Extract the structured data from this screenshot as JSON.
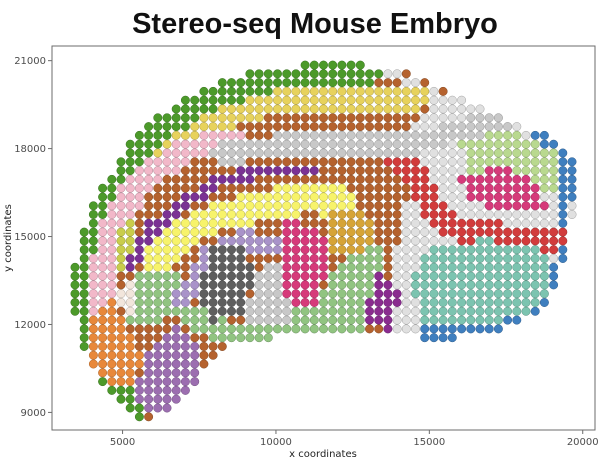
{
  "chart_data": {
    "type": "scatter",
    "title": "Stereo-seq Mouse Embryo",
    "xlabel": "x coordinates",
    "ylabel": "y coordinates",
    "xlim": [
      2700,
      20400
    ],
    "ylim": [
      8400,
      21500
    ],
    "x_ticks": [
      5000,
      10000,
      15000,
      20000
    ],
    "y_ticks": [
      9000,
      12000,
      15000,
      18000,
      21000
    ],
    "x_tick_labels": [
      "5000",
      "10000",
      "15000",
      "20000"
    ],
    "y_tick_labels": [
      "9000",
      "12000",
      "15000",
      "18000",
      "21000"
    ],
    "grid": false,
    "legend": "none",
    "spot_spacing": 300,
    "tissue_outline": [
      [
        3300,
        13200
      ],
      [
        3500,
        14500
      ],
      [
        3900,
        15800
      ],
      [
        4500,
        17000
      ],
      [
        5200,
        18100
      ],
      [
        6300,
        19200
      ],
      [
        7700,
        20100
      ],
      [
        9200,
        20600
      ],
      [
        11000,
        20900
      ],
      [
        12800,
        20900
      ],
      [
        14500,
        20500
      ],
      [
        16000,
        19700
      ],
      [
        17500,
        19000
      ],
      [
        19000,
        18400
      ],
      [
        19700,
        17600
      ],
      [
        19800,
        16000
      ],
      [
        19400,
        14700
      ],
      [
        19300,
        13600
      ],
      [
        18600,
        12500
      ],
      [
        17300,
        11800
      ],
      [
        15500,
        11500
      ],
      [
        13800,
        11600
      ],
      [
        12000,
        11700
      ],
      [
        10200,
        11600
      ],
      [
        8600,
        11300
      ],
      [
        7600,
        10300
      ],
      [
        6800,
        9200
      ],
      [
        5700,
        8700
      ],
      [
        4800,
        9300
      ],
      [
        3900,
        10800
      ],
      [
        3500,
        12000
      ]
    ],
    "cluster_colors": [
      "#4c9a2a",
      "#b5622e",
      "#e7d25c",
      "#f2b8c9",
      "#7b3294",
      "#f7f36b",
      "#5f5f5f",
      "#d63a7a",
      "#d6a437",
      "#8a2c8f",
      "#c9cd4c",
      "#c8c8c8",
      "#91c481",
      "#d23c3c",
      "#3f7fbf",
      "#7cc4b0",
      "#b9d98f",
      "#a993c9",
      "#e0e0e0",
      "#e8883a",
      "#9c6eb0",
      "#3b8a74",
      "#f2e6dc"
    ],
    "clusters": [
      {
        "color": "#e0e0e0",
        "region": "polygon",
        "points": [
          [
            13600,
            20700
          ],
          [
            16200,
            19600
          ],
          [
            19200,
            18400
          ],
          [
            19900,
            16500
          ],
          [
            19600,
            14300
          ],
          [
            19400,
            13000
          ],
          [
            18600,
            12200
          ],
          [
            17200,
            11700
          ],
          [
            15200,
            11500
          ],
          [
            13800,
            11700
          ],
          [
            13800,
            14000
          ],
          [
            14500,
            17500
          ],
          [
            13600,
            19400
          ]
        ]
      },
      {
        "color": "#b5622e",
        "region": "polygon",
        "points": [
          [
            4800,
            16200
          ],
          [
            6500,
            18700
          ],
          [
            9000,
            20100
          ],
          [
            11500,
            20500
          ],
          [
            14000,
            20300
          ],
          [
            15100,
            19300
          ],
          [
            14200,
            18600
          ],
          [
            12500,
            19100
          ],
          [
            10000,
            19100
          ],
          [
            8000,
            18500
          ],
          [
            6500,
            17400
          ],
          [
            5500,
            16200
          ]
        ]
      },
      {
        "color": "#4c9a2a",
        "region": "band",
        "width": 650,
        "path": [
          [
            5300,
            9400
          ],
          [
            4200,
            10800
          ],
          [
            3500,
            12500
          ],
          [
            3600,
            14300
          ],
          [
            4000,
            15800
          ],
          [
            4800,
            17200
          ],
          [
            6000,
            18600
          ],
          [
            7600,
            19700
          ],
          [
            9400,
            20400
          ],
          [
            11200,
            20800
          ],
          [
            13000,
            20800
          ]
        ]
      },
      {
        "color": "#e7d25c",
        "region": "band",
        "width": 380,
        "path": [
          [
            14600,
            19700
          ],
          [
            12500,
            19600
          ],
          [
            10200,
            19700
          ],
          [
            8100,
            18900
          ],
          [
            6600,
            17900
          ],
          [
            5600,
            16700
          ]
        ]
      },
      {
        "color": "#f2b8c9",
        "region": "band",
        "width": 420,
        "path": [
          [
            4300,
            11800
          ],
          [
            4300,
            13500
          ],
          [
            4700,
            15300
          ],
          [
            5500,
            16800
          ],
          [
            6900,
            17900
          ],
          [
            8600,
            18300
          ]
        ]
      },
      {
        "color": "#e8883a",
        "region": "polygon",
        "points": [
          [
            4000,
            10400
          ],
          [
            5100,
            9700
          ],
          [
            5700,
            10700
          ],
          [
            5200,
            11800
          ],
          [
            4600,
            12900
          ],
          [
            3900,
            12200
          ]
        ]
      },
      {
        "color": "#c9cd4c",
        "region": "polygon",
        "points": [
          [
            4800,
            13500
          ],
          [
            5600,
            14400
          ],
          [
            5300,
            15800
          ],
          [
            4700,
            14800
          ]
        ]
      },
      {
        "color": "#3b8a74",
        "region": "polygon",
        "points": [
          [
            5800,
            12300
          ],
          [
            6700,
            12300
          ],
          [
            6900,
            13500
          ],
          [
            6200,
            14100
          ],
          [
            5600,
            13400
          ]
        ]
      },
      {
        "color": "#f2e6dc",
        "region": "polygon",
        "points": [
          [
            5000,
            12200
          ],
          [
            5800,
            12900
          ],
          [
            5600,
            13800
          ],
          [
            4900,
            13000
          ]
        ]
      },
      {
        "color": "#91c481",
        "region": "polygon",
        "points": [
          [
            5200,
            12000
          ],
          [
            6700,
            12200
          ],
          [
            7800,
            11500
          ],
          [
            10000,
            11500
          ],
          [
            12600,
            11700
          ],
          [
            13600,
            12200
          ],
          [
            13600,
            14900
          ],
          [
            12200,
            14200
          ],
          [
            11000,
            12600
          ],
          [
            8800,
            12000
          ],
          [
            7200,
            12800
          ],
          [
            6500,
            14200
          ],
          [
            5600,
            13900
          ]
        ]
      },
      {
        "color": "#9c6eb0",
        "region": "polygon",
        "points": [
          [
            5400,
            9300
          ],
          [
            6500,
            8900
          ],
          [
            7300,
            9800
          ],
          [
            7600,
            11100
          ],
          [
            6700,
            11900
          ],
          [
            5700,
            11000
          ]
        ]
      },
      {
        "color": "#7b3294",
        "region": "band",
        "width": 220,
        "path": [
          [
            5200,
            14000
          ],
          [
            5900,
            15200
          ],
          [
            6900,
            16100
          ],
          [
            8200,
            16900
          ],
          [
            9800,
            17300
          ],
          [
            11300,
            17300
          ]
        ]
      },
      {
        "color": "#f7f36b",
        "region": "band",
        "width": 500,
        "path": [
          [
            6200,
            14200
          ],
          [
            6900,
            15100
          ],
          [
            8200,
            15700
          ],
          [
            9700,
            16100
          ],
          [
            11000,
            16300
          ],
          [
            12000,
            16200
          ]
        ]
      },
      {
        "color": "#a993c9",
        "region": "band",
        "width": 300,
        "path": [
          [
            7000,
            12900
          ],
          [
            7800,
            14400
          ],
          [
            9000,
            14900
          ],
          [
            10300,
            14500
          ]
        ]
      },
      {
        "color": "#5f5f5f",
        "region": "polygon",
        "points": [
          [
            7800,
            12100
          ],
          [
            8900,
            12300
          ],
          [
            9300,
            13500
          ],
          [
            9000,
            14700
          ],
          [
            7900,
            14700
          ],
          [
            7500,
            13300
          ]
        ]
      },
      {
        "color": "#c8c8c8",
        "region": "polygon",
        "points": [
          [
            8800,
            11900
          ],
          [
            10400,
            12000
          ],
          [
            10800,
            13300
          ],
          [
            10100,
            14200
          ],
          [
            9400,
            13700
          ],
          [
            9000,
            12600
          ]
        ]
      },
      {
        "color": "#d63a7a",
        "region": "polygon",
        "points": [
          [
            10500,
            12500
          ],
          [
            11300,
            12600
          ],
          [
            11700,
            13800
          ],
          [
            11500,
            15400
          ],
          [
            10300,
            15500
          ],
          [
            10100,
            13900
          ]
        ]
      },
      {
        "color": "#d6a437",
        "region": "polygon",
        "points": [
          [
            11600,
            14500
          ],
          [
            13000,
            14500
          ],
          [
            13200,
            15700
          ],
          [
            11700,
            16000
          ]
        ]
      },
      {
        "color": "#91c481",
        "region": "polygon",
        "points": [
          [
            12000,
            12000
          ],
          [
            13600,
            12000
          ],
          [
            13600,
            14100
          ],
          [
            12500,
            14300
          ],
          [
            11800,
            13300
          ]
        ]
      },
      {
        "color": "#8a2c8f",
        "region": "polygon",
        "points": [
          [
            12700,
            12000
          ],
          [
            13700,
            11800
          ],
          [
            14100,
            13200
          ],
          [
            13400,
            13800
          ]
        ]
      },
      {
        "color": "#3f7fbf",
        "region": "band",
        "width": 230,
        "path": [
          [
            15000,
            11700
          ],
          [
            17000,
            11800
          ],
          [
            18800,
            12600
          ],
          [
            19300,
            14200
          ],
          [
            19400,
            15800
          ],
          [
            19500,
            17500
          ],
          [
            18300,
            18700
          ]
        ]
      },
      {
        "color": "#b9d98f",
        "region": "polygon",
        "points": [
          [
            16000,
            18400
          ],
          [
            17800,
            18600
          ],
          [
            19200,
            17800
          ],
          [
            19300,
            16600
          ],
          [
            18100,
            16400
          ],
          [
            16300,
            16800
          ]
        ]
      },
      {
        "color": "#d23c3c",
        "region": "band",
        "width": 420,
        "path": [
          [
            13300,
            18300
          ],
          [
            14500,
            17300
          ],
          [
            15100,
            15900
          ],
          [
            16000,
            15200
          ],
          [
            17000,
            15200
          ],
          [
            18000,
            14700
          ],
          [
            19100,
            14900
          ]
        ]
      },
      {
        "color": "#d63a7a",
        "region": "polygon",
        "points": [
          [
            15900,
            17100
          ],
          [
            17600,
            17400
          ],
          [
            18600,
            16700
          ],
          [
            18900,
            15900
          ],
          [
            17600,
            15800
          ],
          [
            16300,
            16200
          ]
        ]
      },
      {
        "color": "#7cc4b0",
        "region": "polygon",
        "points": [
          [
            14800,
            12100
          ],
          [
            16800,
            12000
          ],
          [
            18600,
            12500
          ],
          [
            19000,
            13800
          ],
          [
            18600,
            14700
          ],
          [
            16700,
            14900
          ],
          [
            15000,
            14600
          ],
          [
            14300,
            13500
          ]
        ]
      },
      {
        "color": "#c8c8c8",
        "region": "band",
        "width": 360,
        "path": [
          [
            8300,
            17800
          ],
          [
            10500,
            18200
          ],
          [
            12500,
            18100
          ],
          [
            14400,
            18100
          ],
          [
            15900,
            18600
          ],
          [
            17500,
            19000
          ]
        ]
      }
    ]
  }
}
